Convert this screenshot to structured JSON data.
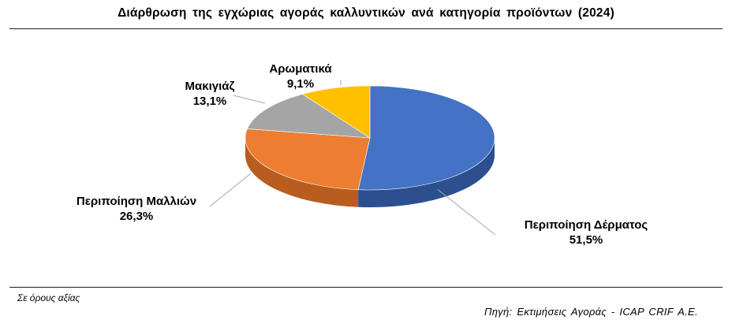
{
  "title": "Διάρθρωση της εγχώριας αγοράς καλλυντικών ανά κατηγορία προϊόντων (2024)",
  "note": "Σε όρους αξίας",
  "source": "Πηγή: Εκτιμήσεις Αγοράς - ICAP CRIF A.E.",
  "chart_data": {
    "type": "pie",
    "title": "Διάρθρωση της εγχώριας αγοράς καλλυντικών ανά κατηγορία προϊόντων (2024)",
    "slices": [
      {
        "label": "Περιποίηση Δέρματος",
        "value": 51.5,
        "value_label": "51,5%",
        "color": "#4472C4",
        "side_color": "#2B4F8F"
      },
      {
        "label": "Περιποίηση Μαλλιών",
        "value": 26.3,
        "value_label": "26,3%",
        "color": "#ED7D31",
        "side_color": "#B85D1F"
      },
      {
        "label": "Μακιγιάζ",
        "value": 13.1,
        "value_label": "13,1%",
        "color": "#A5A5A5",
        "side_color": "#7A7A7A"
      },
      {
        "label": "Αρωματικά",
        "value": 9.1,
        "value_label": "9,1%",
        "color": "#FFC000",
        "side_color": "#C79500"
      }
    ],
    "style": "3d"
  }
}
